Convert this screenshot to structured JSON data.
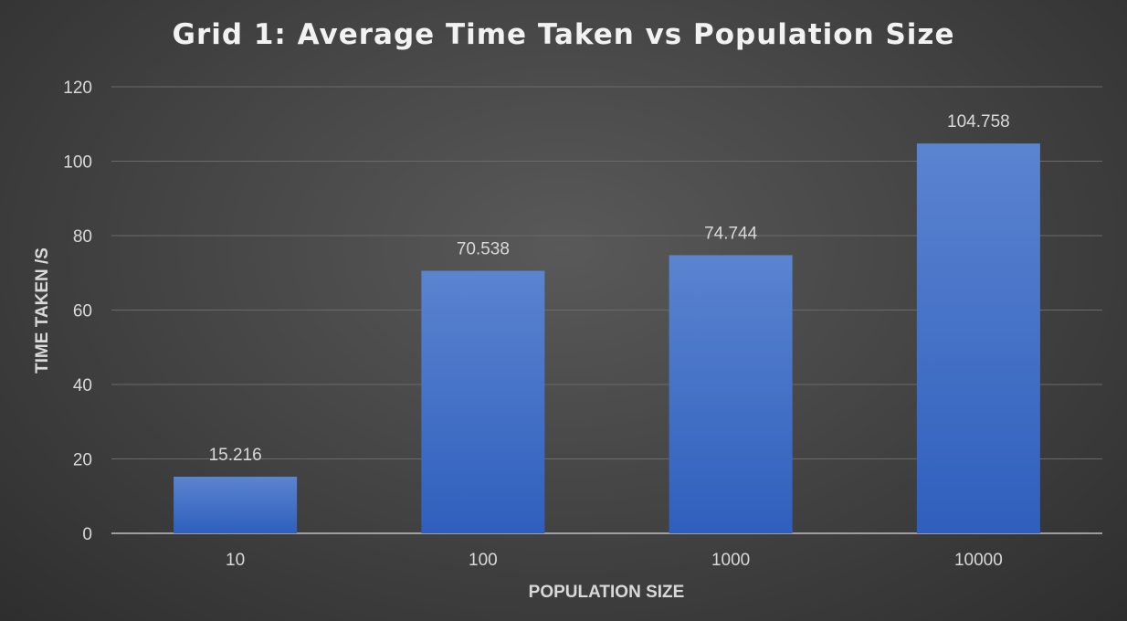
{
  "chart_data": {
    "type": "bar",
    "title": "Grid 1: Average Time Taken vs Population Size",
    "xlabel": "POPULATION SIZE",
    "ylabel": "TIME TAKEN /S",
    "categories": [
      "10",
      "100",
      "1000",
      "10000"
    ],
    "values": [
      15.216,
      70.538,
      74.744,
      104.758
    ],
    "data_labels": [
      "15.216",
      "70.538",
      "74.744",
      "104.758"
    ],
    "ylim": [
      0,
      120
    ],
    "yticks": [
      0,
      20,
      40,
      60,
      80,
      100,
      120
    ],
    "grid": true,
    "legend": "none",
    "colors": {
      "bar_top": "#5b84d0",
      "bar_bottom": "#2f5fbd",
      "grid": "#6a6a6a",
      "axis": "#bfbfbf",
      "text": "#d9d9d9",
      "title": "#f2f2f2"
    }
  }
}
